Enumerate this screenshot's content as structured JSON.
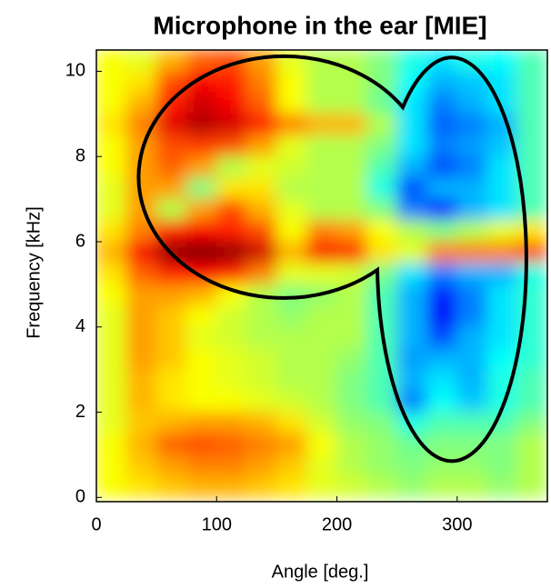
{
  "chart_data": {
    "type": "heatmap",
    "title": "Microphone in the ear [MIE]",
    "x_label": "Angle [deg.]",
    "y_label": "Frequency [kHz]",
    "colormap": "jet",
    "zlim": [
      0,
      1
    ],
    "x": [
      12.5,
      37.5,
      62.5,
      87.5,
      112.5,
      137.5,
      162.5,
      187.5,
      212.5,
      237.5,
      262.5,
      287.5,
      312.5,
      337.5,
      362.5
    ],
    "y": [
      10.25,
      9.75,
      9.25,
      8.75,
      8.25,
      7.75,
      7.25,
      6.75,
      6.25,
      5.75,
      5.25,
      4.75,
      4.25,
      3.75,
      3.25,
      2.75,
      2.25,
      1.75,
      1.25,
      0.75,
      0.25
    ],
    "z": [
      [
        0.62,
        0.6,
        0.7,
        0.78,
        0.8,
        0.72,
        0.6,
        0.55,
        0.55,
        0.5,
        0.4,
        0.35,
        0.4,
        0.38,
        0.45
      ],
      [
        0.62,
        0.65,
        0.8,
        0.88,
        0.85,
        0.75,
        0.62,
        0.55,
        0.55,
        0.5,
        0.38,
        0.3,
        0.32,
        0.35,
        0.45
      ],
      [
        0.62,
        0.7,
        0.85,
        0.92,
        0.88,
        0.78,
        0.62,
        0.55,
        0.55,
        0.48,
        0.35,
        0.25,
        0.3,
        0.35,
        0.45
      ],
      [
        0.65,
        0.75,
        0.9,
        0.95,
        0.92,
        0.85,
        0.75,
        0.7,
        0.7,
        0.55,
        0.35,
        0.22,
        0.25,
        0.3,
        0.45
      ],
      [
        0.62,
        0.72,
        0.8,
        0.82,
        0.8,
        0.72,
        0.6,
        0.55,
        0.55,
        0.5,
        0.35,
        0.25,
        0.28,
        0.32,
        0.45
      ],
      [
        0.62,
        0.72,
        0.78,
        0.72,
        0.55,
        0.6,
        0.58,
        0.55,
        0.55,
        0.45,
        0.3,
        0.2,
        0.25,
        0.35,
        0.45
      ],
      [
        0.6,
        0.72,
        0.72,
        0.5,
        0.65,
        0.65,
        0.55,
        0.55,
        0.55,
        0.4,
        0.2,
        0.3,
        0.3,
        0.35,
        0.45
      ],
      [
        0.6,
        0.72,
        0.55,
        0.72,
        0.8,
        0.7,
        0.6,
        0.55,
        0.55,
        0.5,
        0.25,
        0.15,
        0.3,
        0.35,
        0.45
      ],
      [
        0.65,
        0.75,
        0.85,
        0.88,
        0.85,
        0.8,
        0.62,
        0.75,
        0.72,
        0.62,
        0.55,
        0.5,
        0.55,
        0.6,
        0.65
      ],
      [
        0.7,
        0.88,
        0.98,
        1,
        0.98,
        0.92,
        0.7,
        0.88,
        0.85,
        0.65,
        0.6,
        0.75,
        0.75,
        0.75,
        0.8
      ],
      [
        0.65,
        0.78,
        0.85,
        0.88,
        0.85,
        0.75,
        0.6,
        0.6,
        0.58,
        0.5,
        0.35,
        0.25,
        0.3,
        0.3,
        0.4
      ],
      [
        0.62,
        0.72,
        0.72,
        0.7,
        0.62,
        0.55,
        0.5,
        0.52,
        0.55,
        0.45,
        0.3,
        0.15,
        0.25,
        0.35,
        0.42
      ],
      [
        0.6,
        0.72,
        0.68,
        0.62,
        0.58,
        0.55,
        0.52,
        0.55,
        0.55,
        0.45,
        0.3,
        0.12,
        0.25,
        0.35,
        0.42
      ],
      [
        0.6,
        0.72,
        0.68,
        0.6,
        0.58,
        0.55,
        0.55,
        0.55,
        0.55,
        0.45,
        0.3,
        0.2,
        0.3,
        0.35,
        0.42
      ],
      [
        0.6,
        0.72,
        0.68,
        0.62,
        0.6,
        0.58,
        0.55,
        0.55,
        0.52,
        0.45,
        0.28,
        0.3,
        0.3,
        0.38,
        0.42
      ],
      [
        0.6,
        0.7,
        0.65,
        0.62,
        0.6,
        0.58,
        0.55,
        0.55,
        0.5,
        0.45,
        0.3,
        0.35,
        0.3,
        0.4,
        0.45
      ],
      [
        0.6,
        0.7,
        0.65,
        0.62,
        0.62,
        0.6,
        0.58,
        0.55,
        0.5,
        0.45,
        0.25,
        0.38,
        0.32,
        0.4,
        0.45
      ],
      [
        0.6,
        0.68,
        0.7,
        0.72,
        0.72,
        0.7,
        0.65,
        0.58,
        0.52,
        0.5,
        0.4,
        0.45,
        0.45,
        0.45,
        0.5
      ],
      [
        0.62,
        0.7,
        0.78,
        0.8,
        0.78,
        0.75,
        0.72,
        0.62,
        0.55,
        0.52,
        0.48,
        0.5,
        0.5,
        0.5,
        0.55
      ],
      [
        0.62,
        0.68,
        0.72,
        0.75,
        0.75,
        0.72,
        0.68,
        0.6,
        0.55,
        0.52,
        0.5,
        0.52,
        0.52,
        0.5,
        0.55
      ],
      [
        0.62,
        0.65,
        0.68,
        0.7,
        0.7,
        0.68,
        0.65,
        0.6,
        0.58,
        0.55,
        0.52,
        0.55,
        0.55,
        0.52,
        0.55
      ]
    ],
    "xlim": [
      0,
      375
    ],
    "ylim": [
      -0.1,
      10.5
    ],
    "xticks": [
      0,
      100,
      200,
      300
    ],
    "yticks": [
      0,
      2,
      4,
      6,
      8,
      10
    ]
  }
}
